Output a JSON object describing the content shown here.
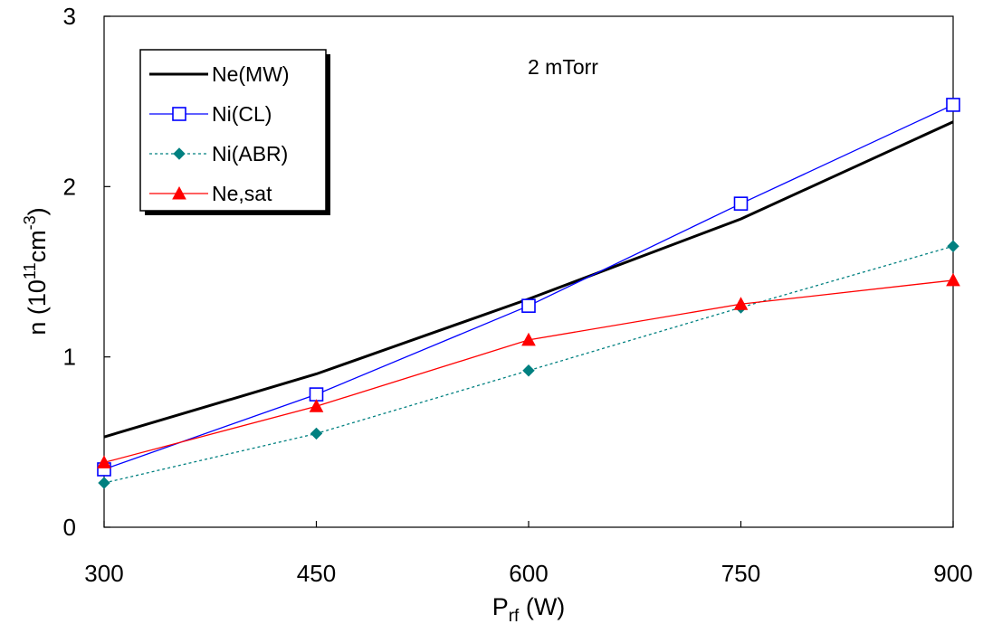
{
  "chart_data": {
    "type": "line",
    "annotation": "2 mTorr",
    "xlabel": {
      "main": "P",
      "sub": "rf",
      "unit": " (W)"
    },
    "ylabel": {
      "pre": "n (10",
      "sup1": "11",
      "mid": "cm",
      "sup2": "-3",
      "post": ")"
    },
    "x": [
      300,
      450,
      600,
      750,
      900
    ],
    "xticks": [
      "300",
      "450",
      "600",
      "750",
      "900"
    ],
    "yticks": [
      "0",
      "1",
      "2",
      "3"
    ],
    "xlim": [
      300,
      900
    ],
    "ylim": [
      0,
      3
    ],
    "legend_position": "top-left",
    "grid": false,
    "series": [
      {
        "name": "Ne(MW)",
        "values": [
          0.53,
          0.9,
          1.34,
          1.81,
          2.38
        ],
        "color": "#000000",
        "marker": "none",
        "dash": "solid"
      },
      {
        "name": "Ni(CL)",
        "values": [
          0.34,
          0.78,
          1.3,
          1.9,
          2.48
        ],
        "color": "#0000ff",
        "marker": "square-open",
        "dash": "solid"
      },
      {
        "name": "Ni(ABR)",
        "values": [
          0.26,
          0.55,
          0.92,
          1.29,
          1.65
        ],
        "color": "#008080",
        "marker": "diamond",
        "dash": "dotted"
      },
      {
        "name": "Ne,sat",
        "values": [
          0.38,
          0.71,
          1.1,
          1.31,
          1.45
        ],
        "color": "#ff0000",
        "marker": "triangle",
        "dash": "solid"
      }
    ]
  }
}
